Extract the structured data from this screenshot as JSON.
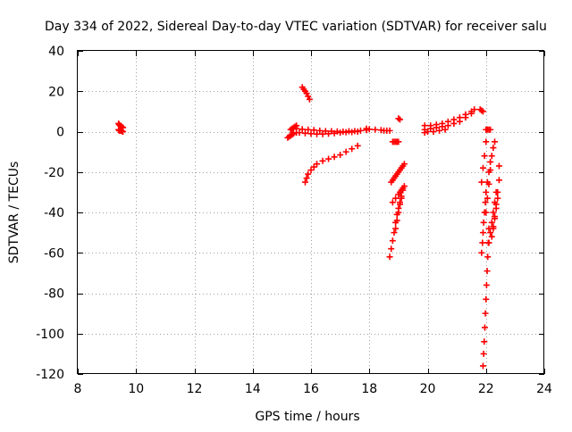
{
  "chart_data": {
    "type": "scatter",
    "title": "Day 334 of 2022, Sidereal Day-to-day VTEC variation (SDTVAR) for receiver salu",
    "xlabel": "GPS time / hours",
    "ylabel": "SDTVAR / TECUs",
    "xlim": [
      8,
      24
    ],
    "ylim": [
      -120,
      40
    ],
    "xticks": [
      8,
      10,
      12,
      14,
      16,
      18,
      20,
      22,
      24
    ],
    "yticks": [
      40,
      20,
      0,
      -20,
      -40,
      -60,
      -80,
      -100,
      -120
    ],
    "grid": true,
    "marker": "+",
    "series": [
      {
        "name": "SDTVAR",
        "color": "#ff0000",
        "segments": [
          {
            "label": "arc-09h-a",
            "x": [
              9.4,
              9.42,
              9.45,
              9.48,
              9.5,
              9.52,
              9.55
            ],
            "y": [
              4,
              3.5,
              3,
              2.8,
              2.5,
              2.2,
              2
            ]
          },
          {
            "label": "arc-09h-b",
            "x": [
              9.4,
              9.42,
              9.45,
              9.48,
              9.5,
              9.52,
              9.55
            ],
            "y": [
              1,
              0.5,
              0.5,
              0.5,
              0.5,
              0.2,
              0
            ]
          },
          {
            "label": "arc-15h-neg",
            "x": [
              15.2,
              15.25,
              15.3,
              15.35,
              15.4,
              15.5
            ],
            "y": [
              -3,
              -2.5,
              -2,
              -1.5,
              -1,
              -0.5
            ]
          },
          {
            "label": "arc-15h-up",
            "x": [
              15.3,
              15.35,
              15.4,
              15.45,
              15.5
            ],
            "y": [
              1,
              1.5,
              2,
              2.5,
              3
            ]
          },
          {
            "label": "arc-15h-flat",
            "x": [
              15.5,
              15.7,
              15.9,
              16.1,
              16.3,
              16.5,
              16.7,
              16.9,
              17.1,
              17.3,
              17.5,
              17.7,
              17.9
            ],
            "y": [
              1.5,
              1.2,
              1,
              0.8,
              0.5,
              0.3,
              0.2,
              0.1,
              0,
              0.2,
              0.3,
              0.5,
              0.8
            ]
          },
          {
            "label": "arc-15h-low",
            "x": [
              15.6,
              15.8,
              16.0,
              16.2,
              16.4,
              16.6,
              16.8,
              17.0,
              17.2,
              17.4,
              17.6
            ],
            "y": [
              -0.5,
              -0.8,
              -1,
              -1.2,
              -1.2,
              -1.0,
              -0.8,
              -0.5,
              -0.3,
              -0.2,
              0
            ]
          },
          {
            "label": "arc-16h-high",
            "x": [
              15.7,
              15.75,
              15.8,
              15.85,
              15.9,
              15.95
            ],
            "y": [
              22,
              21,
              20,
              19,
              17.5,
              16
            ]
          },
          {
            "label": "arc-16h-decay",
            "x": [
              15.8,
              15.85,
              15.9,
              16.0,
              16.1,
              16.2,
              16.4,
              16.6,
              16.8,
              17.0,
              17.2,
              17.4,
              17.6
            ],
            "y": [
              -25,
              -23,
              -21,
              -19,
              -17.5,
              -16,
              -14.5,
              -13.5,
              -12.5,
              -11.5,
              -10,
              -8.5,
              -7
            ]
          },
          {
            "label": "arc-18h-flat",
            "x": [
              17.9,
              18.0,
              18.2,
              18.4,
              18.5,
              18.6,
              18.7
            ],
            "y": [
              1.5,
              1.2,
              1,
              0.8,
              0.5,
              0.5,
              0.5
            ]
          },
          {
            "label": "arc-18h-mid",
            "x": [
              18.8,
              18.85,
              18.9,
              18.95,
              19.0
            ],
            "y": [
              -5,
              -5,
              -5,
              -5,
              -5
            ]
          },
          {
            "label": "arc-19h-dot",
            "x": [
              19.0,
              19.05
            ],
            "y": [
              6.5,
              6
            ]
          },
          {
            "label": "arc-19h-a",
            "x": [
              18.75,
              18.8,
              18.85,
              18.9,
              18.95,
              19.0,
              19.05,
              19.1,
              19.15,
              19.2
            ],
            "y": [
              -25,
              -24,
              -23,
              -22,
              -21,
              -20,
              -19,
              -18,
              -17,
              -16
            ]
          },
          {
            "label": "arc-19h-b",
            "x": [
              18.7,
              18.75,
              18.8,
              18.85,
              18.9,
              18.95,
              19.0,
              19.05,
              19.1,
              19.15
            ],
            "y": [
              -62,
              -58,
              -54,
              -50,
              -45,
              -41,
              -38,
              -35,
              -32,
              -29
            ]
          },
          {
            "label": "arc-19h-c",
            "x": [
              18.8,
              18.9,
              19.0,
              19.05,
              19.1,
              19.15,
              19.2
            ],
            "y": [
              -35,
              -33,
              -31,
              -30,
              -29,
              -28,
              -27
            ]
          },
          {
            "label": "arc-19h-d",
            "x": [
              18.9,
              18.95,
              19.0,
              19.05,
              19.1
            ],
            "y": [
              -48,
              -44,
              -40,
              -36,
              -33
            ]
          },
          {
            "label": "arc-20h-rise",
            "x": [
              19.9,
              20.1,
              20.3,
              20.5,
              20.7,
              20.9,
              21.1,
              21.3,
              21.5,
              21.6
            ],
            "y": [
              1,
              1.5,
              2,
              2.5,
              3,
              4,
              5,
              7,
              9,
              11
            ]
          },
          {
            "label": "arc-20h-low",
            "x": [
              19.9,
              20.1,
              20.3,
              20.5,
              20.7,
              20.9,
              21.1,
              21.3,
              21.5
            ],
            "y": [
              3,
              3,
              3.5,
              4,
              5,
              6,
              7,
              8.5,
              10
            ]
          },
          {
            "label": "arc-20h-base",
            "x": [
              19.9,
              20.0,
              20.2,
              20.4,
              20.6
            ],
            "y": [
              -0.5,
              0,
              0,
              0.5,
              1
            ]
          },
          {
            "label": "arc-22h-top",
            "x": [
              21.8,
              21.85,
              21.9
            ],
            "y": [
              11,
              10.5,
              10
            ]
          },
          {
            "label": "arc-22h-dot",
            "x": [
              22.0,
              22.05,
              22.1,
              22.15
            ],
            "y": [
              1,
              1,
              1,
              1
            ]
          },
          {
            "label": "arc-22h-deep",
            "x": [
              21.9,
              21.92,
              21.94,
              21.96,
              21.98,
              22.0,
              22.02,
              22.04,
              22.06,
              22.08,
              22.1
            ],
            "y": [
              -116,
              -110,
              -104,
              -97,
              -90,
              -83,
              -76,
              -69,
              -62,
              -55,
              -48
            ]
          },
          {
            "label": "arc-22h-a",
            "x": [
              21.85,
              21.88,
              21.9,
              21.92,
              21.95,
              21.98,
              22.0,
              22.05,
              22.1,
              22.15
            ],
            "y": [
              -60,
              -55,
              -50,
              -45,
              -40,
              -35,
              -30,
              -25,
              -20,
              -15
            ]
          },
          {
            "label": "arc-22h-b",
            "x": [
              22.0,
              22.05,
              22.1,
              22.15,
              22.2,
              22.25,
              22.3
            ],
            "y": [
              -40,
              -33,
              -26,
              -19,
              -12,
              -8,
              -5
            ]
          },
          {
            "label": "arc-22h-c",
            "x": [
              22.1,
              22.15,
              22.2,
              22.25,
              22.3,
              22.35
            ],
            "y": [
              -55,
              -50,
              -45,
              -40,
              -35,
              -30
            ]
          },
          {
            "label": "arc-22h-d",
            "x": [
              22.2,
              22.25,
              22.3,
              22.35,
              22.4,
              22.45
            ],
            "y": [
              -52,
              -47,
              -42,
              -36,
              -30,
              -24
            ]
          },
          {
            "label": "arc-22h-e",
            "x": [
              22.25,
              22.3,
              22.35,
              22.4,
              22.45
            ],
            "y": [
              -48,
              -43,
              -38,
              -33,
              -17
            ]
          },
          {
            "label": "arc-21h-early",
            "x": [
              21.85,
              21.9,
              21.95,
              22.0
            ],
            "y": [
              -25,
              -18,
              -12,
              -5
            ]
          }
        ]
      }
    ]
  }
}
